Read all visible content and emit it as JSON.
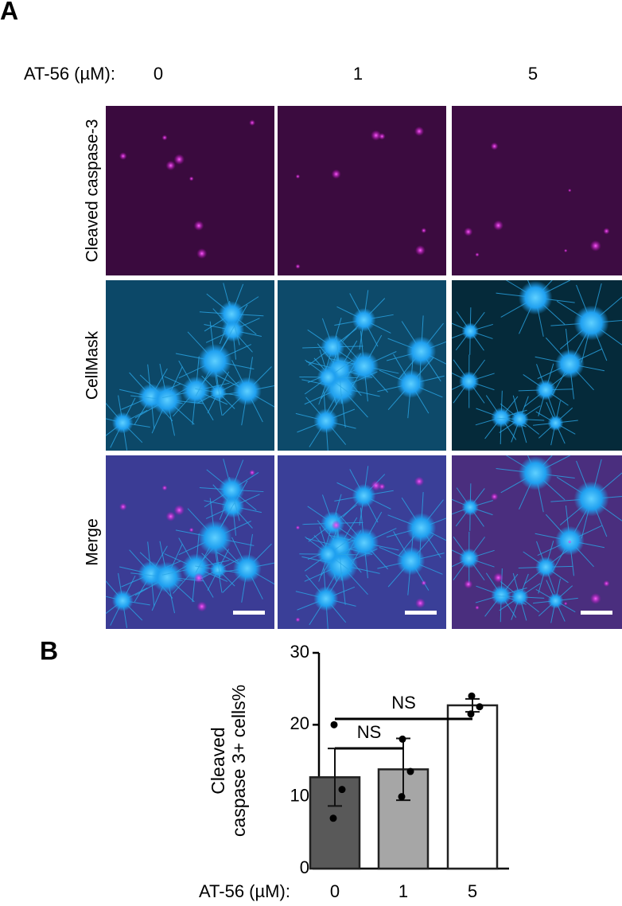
{
  "panel_a": {
    "label": "A",
    "condition_label": "AT-56 (µM):",
    "columns": [
      "0",
      "1",
      "5"
    ],
    "rows": [
      "Cleaved caspase-3",
      "CellMask",
      "Merge"
    ]
  },
  "chart_data": {
    "type": "bar",
    "panel_label": "B",
    "ylabel": [
      "Cleaved",
      "caspase 3+ cells%"
    ],
    "xlabel": "AT-56 (µM):",
    "categories": [
      "0",
      "1",
      "5"
    ],
    "values": [
      12.7,
      13.8,
      22.7
    ],
    "errors": [
      4.0,
      4.3,
      0.9
    ],
    "points": [
      [
        20,
        11,
        7
      ],
      [
        18,
        13.5,
        10
      ],
      [
        24,
        22.5,
        21.5
      ]
    ],
    "colors": [
      "#595959",
      "#a6a6a6",
      "#ffffff"
    ],
    "ylim": [
      0,
      30
    ],
    "yticks": [
      0,
      10,
      20,
      30
    ],
    "annotations": [
      "NS",
      "NS"
    ]
  }
}
